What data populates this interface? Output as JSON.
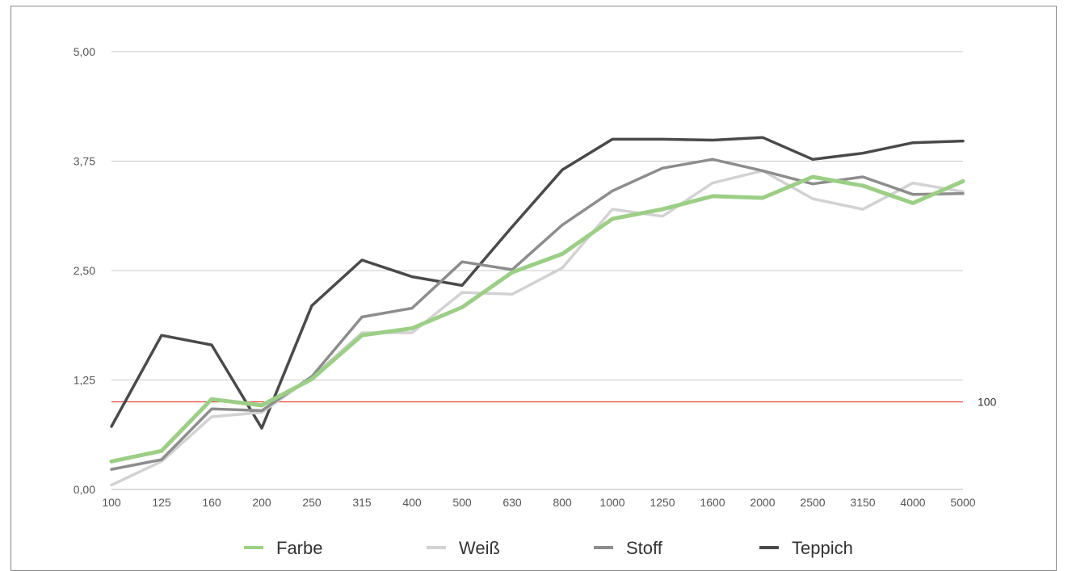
{
  "chart_data": {
    "type": "line",
    "x": [
      "100",
      "125",
      "160",
      "200",
      "250",
      "315",
      "400",
      "500",
      "630",
      "800",
      "1000",
      "1250",
      "1600",
      "2000",
      "2500",
      "3150",
      "4000",
      "5000"
    ],
    "yticks": [
      "0,00",
      "1,25",
      "2,50",
      "3,75",
      "5,00"
    ],
    "ylim": [
      0,
      5
    ],
    "grid": true,
    "legend_position": "bottom",
    "reference_line": {
      "value": 1.0,
      "label": "100",
      "color": "#d9291c"
    },
    "series": [
      {
        "name": "Teppich",
        "color": "#4a4a4a",
        "values": [
          0.72,
          1.76,
          1.65,
          0.7,
          2.1,
          2.62,
          2.43,
          2.33,
          3.0,
          3.65,
          4.0,
          4.0,
          3.99,
          4.02,
          3.77,
          3.84,
          3.96,
          3.98
        ]
      },
      {
        "name": "Weiß",
        "color": "#d2d2d2",
        "values": [
          0.05,
          0.32,
          0.83,
          0.88,
          1.28,
          1.79,
          1.79,
          2.25,
          2.23,
          2.53,
          3.2,
          3.12,
          3.5,
          3.64,
          3.32,
          3.2,
          3.5,
          3.4
        ]
      },
      {
        "name": "Stoff",
        "color": "#8d8d8d",
        "values": [
          0.23,
          0.34,
          0.92,
          0.9,
          1.29,
          1.97,
          2.07,
          2.6,
          2.51,
          3.02,
          3.41,
          3.67,
          3.77,
          3.64,
          3.49,
          3.57,
          3.37,
          3.38
        ]
      },
      {
        "name": "Farbe",
        "color": "#9ccf86",
        "values": [
          0.32,
          0.44,
          1.03,
          0.96,
          1.26,
          1.76,
          1.84,
          2.08,
          2.48,
          2.69,
          3.09,
          3.2,
          3.35,
          3.33,
          3.57,
          3.47,
          3.27,
          3.52
        ]
      }
    ],
    "legend": [
      {
        "name": "Farbe",
        "color": "#9ccf86"
      },
      {
        "name": "Weiß",
        "color": "#d2d2d2"
      },
      {
        "name": "Stoff",
        "color": "#8d8d8d"
      },
      {
        "name": "Teppich",
        "color": "#4a4a4a"
      }
    ]
  }
}
